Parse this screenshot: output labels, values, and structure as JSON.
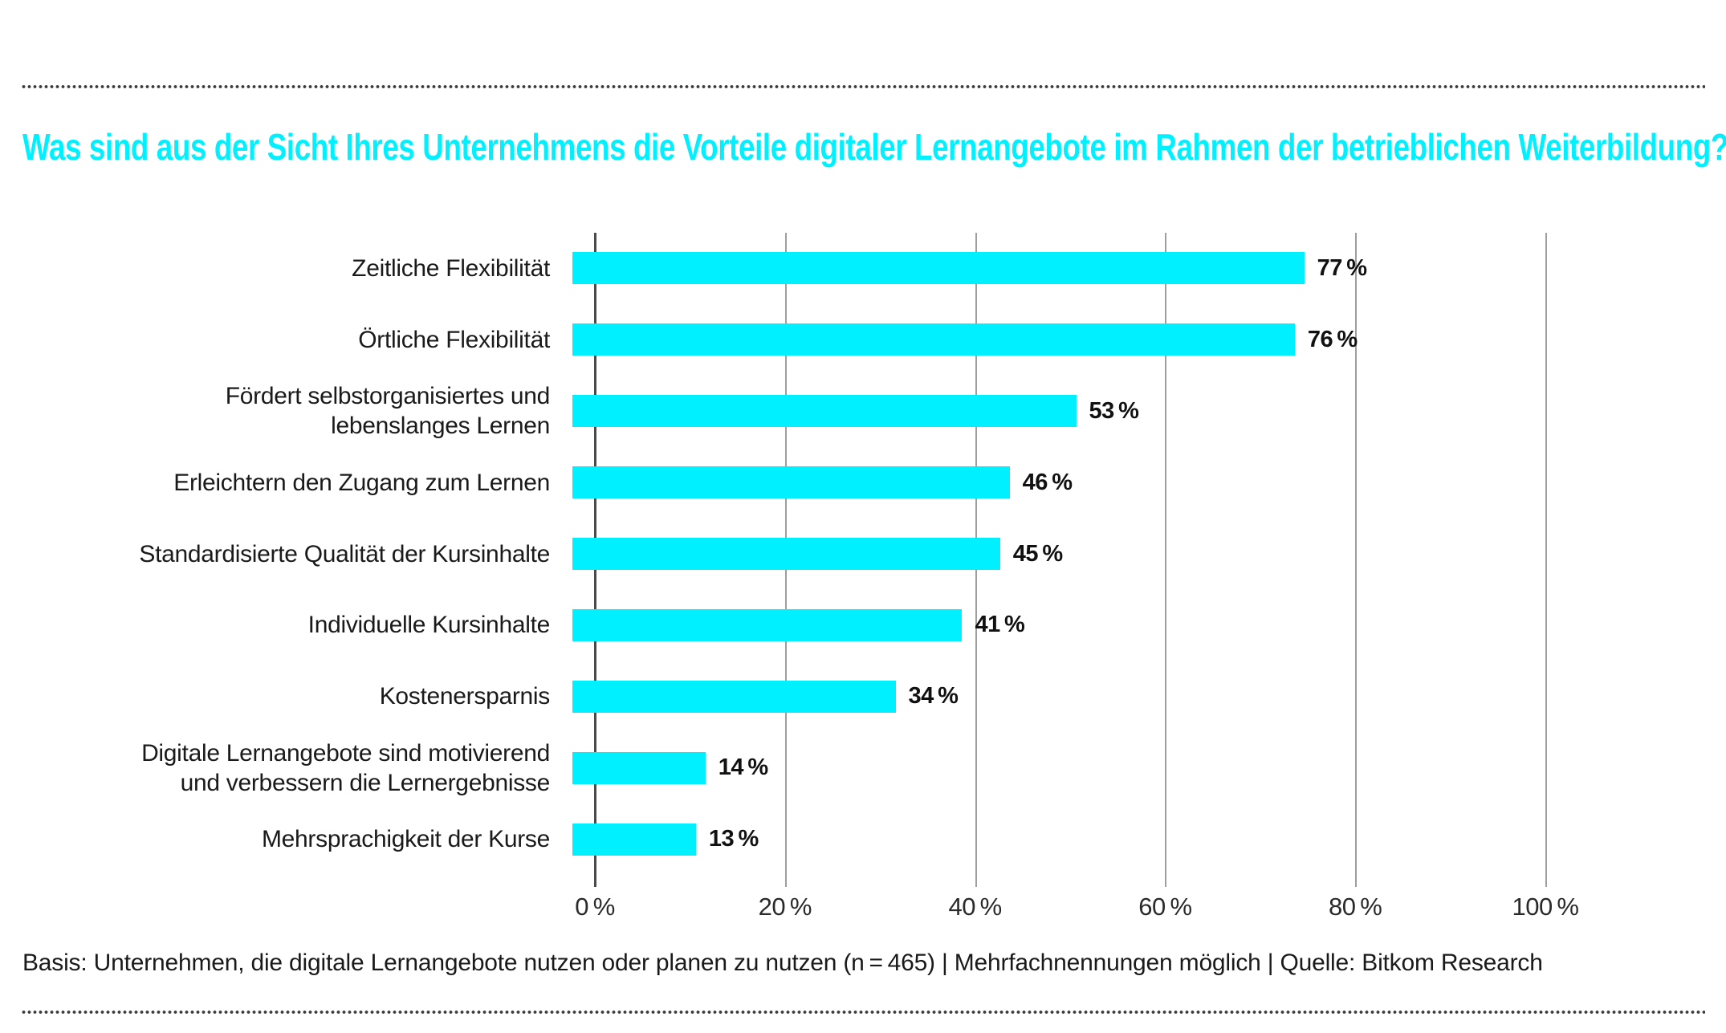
{
  "header": {
    "title": "Was sind aus der Sicht Ihres Unternehmens die Vorteile digitaler Lernangebote im Rahmen der betrieblichen Weiterbildung?"
  },
  "chart_data": {
    "type": "bar",
    "orientation": "horizontal",
    "title": "Was sind aus der Sicht Ihres Unternehmens die Vorteile digitaler Lernangebote im Rahmen der betrieblichen Weiterbildung?",
    "categories": [
      "Zeitliche Flexibilität",
      "Örtliche Flexibilität",
      "Fördert selbstorganisiertes und\nlebenslanges Lernen",
      "Erleichtern den Zugang zum Lernen",
      "Standardisierte Qualität der Kursinhalte",
      "Individuelle Kursinhalte",
      "Kostenersparnis",
      "Digitale Lernangebote sind motivierend\nund verbessern die Lernergebnisse",
      "Mehrsprachigkeit der Kurse"
    ],
    "values": [
      77,
      76,
      53,
      46,
      45,
      41,
      34,
      14,
      13
    ],
    "value_labels": [
      "77 %",
      "76 %",
      "53 %",
      "46 %",
      "45 %",
      "41 %",
      "34 %",
      "14 %",
      "13 %"
    ],
    "x_tick_values": [
      0,
      20,
      40,
      60,
      80,
      100
    ],
    "x_tick_labels": [
      "0 %",
      "20 %",
      "40 %",
      "60 %",
      "80 %",
      "100 %"
    ],
    "xlabel": "",
    "ylabel": "",
    "xlim": [
      0,
      100
    ],
    "grid": true,
    "legend": "none"
  },
  "footer": {
    "text": "Basis: Unternehmen, die digitale Lernangebote nutzen oder planen zu nutzen (n = 465) | Mehrfachnennungen möglich | Quelle: Bitkom Research"
  },
  "colors": {
    "accent_cyan": "#00F0FF",
    "axis_line": "#4A4A4A",
    "gridline": "#9E9E9E",
    "text": "#1A1A1A",
    "divider_dots": "#3C3C3C"
  }
}
